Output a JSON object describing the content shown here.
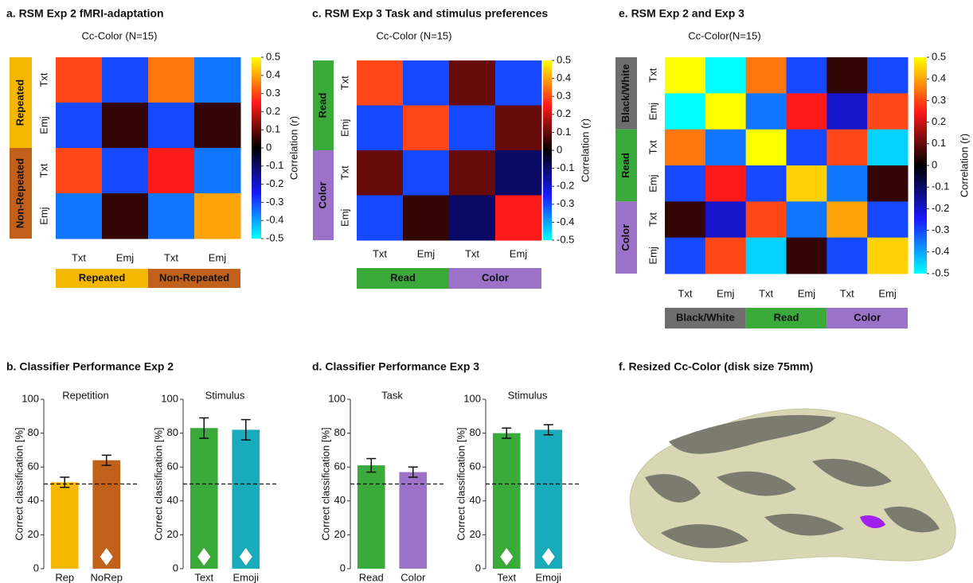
{
  "chart_data": [
    {
      "type": "heatmap",
      "title": "a. RSM Exp 2 fMRI-adaptation",
      "subtitle": "Cc-Color (N=15)",
      "categories": [
        "Txt",
        "Emj",
        "Txt",
        "Emj"
      ],
      "values": [
        [
          0.3,
          -0.3,
          0.35,
          -0.35
        ],
        [
          -0.3,
          0.05,
          -0.3,
          0.05
        ],
        [
          0.3,
          -0.3,
          0.25,
          -0.35
        ],
        [
          -0.35,
          0.05,
          -0.35,
          0.4
        ]
      ],
      "row_groups": [
        {
          "label": "Repeated",
          "color": "#f5b800"
        },
        {
          "label": "Non-Repeated",
          "color": "#c0601a"
        }
      ],
      "colorbar_label": "Correlation (r)",
      "zlim": [
        -0.5,
        0.5
      ],
      "zticks": [
        0.5,
        0.4,
        0.3,
        0.2,
        0.1,
        0,
        -0.1,
        -0.2,
        -0.3,
        -0.4,
        -0.5
      ],
      "colormap": [
        "#00ffff",
        "#1a1aff",
        "#000000",
        "#ff1a1a",
        "#ffff00"
      ]
    },
    {
      "type": "heatmap",
      "title": "c. RSM Exp 3 Task and stimulus preferences",
      "subtitle": "Cc-Color (N=15)",
      "categories": [
        "Txt",
        "Emj",
        "Txt",
        "Emj"
      ],
      "values": [
        [
          0.3,
          -0.3,
          0.1,
          -0.3
        ],
        [
          -0.3,
          0.3,
          -0.3,
          0.1
        ],
        [
          0.1,
          -0.3,
          0.1,
          -0.1
        ],
        [
          -0.3,
          0.05,
          -0.1,
          0.25
        ]
      ],
      "row_groups": [
        {
          "label": "Read",
          "color": "#3aaa3a"
        },
        {
          "label": "Color",
          "color": "#9b72c8"
        }
      ],
      "colorbar_label": "Correlation (r)",
      "zlim": [
        -0.5,
        0.5
      ],
      "zticks": [
        0.5,
        0.4,
        0.3,
        0.2,
        0.1,
        0,
        -0.1,
        -0.2,
        -0.3,
        -0.4,
        -0.5
      ],
      "colormap": [
        "#00ffff",
        "#1a1aff",
        "#000000",
        "#ff1a1a",
        "#ffff00"
      ]
    },
    {
      "type": "heatmap",
      "title": "e. RSM Exp 2 and Exp 3",
      "subtitle": "Cc-Color(N=15)",
      "categories": [
        "Txt",
        "Emj",
        "Txt",
        "Emj",
        "Txt",
        "Emj"
      ],
      "values": [
        [
          0.5,
          -0.5,
          0.35,
          -0.3,
          0.05,
          -0.3
        ],
        [
          -0.5,
          0.5,
          -0.35,
          0.25,
          -0.2,
          0.3
        ],
        [
          0.35,
          -0.35,
          0.5,
          -0.3,
          0.3,
          -0.45
        ],
        [
          -0.3,
          0.25,
          -0.3,
          0.45,
          -0.35,
          0.05
        ],
        [
          0.05,
          -0.2,
          0.3,
          -0.35,
          0.4,
          -0.3
        ],
        [
          -0.3,
          0.3,
          -0.45,
          0.05,
          -0.3,
          0.45
        ]
      ],
      "row_groups": [
        {
          "label": "Black/White",
          "color": "#6e6e6e"
        },
        {
          "label": "Read",
          "color": "#3aaa3a"
        },
        {
          "label": "Color",
          "color": "#9b72c8"
        }
      ],
      "colorbar_label": "Correlation (r)",
      "zlim": [
        -0.5,
        0.5
      ],
      "zticks": [
        0.5,
        0.4,
        0.3,
        0.2,
        0.1,
        0,
        -0.1,
        -0.2,
        -0.3,
        -0.4,
        -0.5
      ],
      "colormap": [
        "#00ffff",
        "#1a1aff",
        "#000000",
        "#ff1a1a",
        "#ffff00"
      ]
    },
    {
      "type": "bar",
      "panel_title": "b. Classifier Performance Exp 2",
      "title": "Repetition",
      "categories": [
        "Rep",
        "NoRep"
      ],
      "values": [
        51,
        64
      ],
      "errors": [
        3,
        3
      ],
      "colors": [
        "#f5b800",
        "#c0601a"
      ],
      "significant": [
        false,
        true
      ],
      "reference_line": 50,
      "ylabel": "Correct classification [%]",
      "ylim": [
        0,
        100
      ],
      "yticks": [
        0,
        20,
        40,
        60,
        80,
        100
      ]
    },
    {
      "type": "bar",
      "title": "Stimulus",
      "categories": [
        "Text",
        "Emoji"
      ],
      "values": [
        83,
        82
      ],
      "errors": [
        6,
        6
      ],
      "colors": [
        "#3aaa3a",
        "#1aabbb"
      ],
      "significant": [
        true,
        true
      ],
      "reference_line": 50,
      "ylabel": "Correct classification [%]",
      "ylim": [
        0,
        100
      ],
      "yticks": [
        0,
        20,
        40,
        60,
        80,
        100
      ]
    },
    {
      "type": "bar",
      "panel_title": "d. Classifier Performance Exp 3",
      "title": "Task",
      "categories": [
        "Read",
        "Color"
      ],
      "values": [
        61,
        57
      ],
      "errors": [
        4,
        3
      ],
      "colors": [
        "#3aaa3a",
        "#9b72c8"
      ],
      "significant": [
        false,
        false
      ],
      "reference_line": 50,
      "ylabel": "Correct classification [%]",
      "ylim": [
        0,
        100
      ],
      "yticks": [
        0,
        20,
        40,
        60,
        80,
        100
      ]
    },
    {
      "type": "bar",
      "title": "Stimulus",
      "categories": [
        "Text",
        "Emoji"
      ],
      "values": [
        80,
        82
      ],
      "errors": [
        3,
        3
      ],
      "colors": [
        "#3aaa3a",
        "#1aabbb"
      ],
      "significant": [
        true,
        true
      ],
      "reference_line": 50,
      "ylabel": "Correct classification [%]",
      "ylim": [
        0,
        100
      ],
      "yticks": [
        0,
        20,
        40,
        60,
        80,
        100
      ]
    }
  ],
  "image_panel": {
    "title": "f. Resized Cc-Color (disk size 75mm)"
  }
}
